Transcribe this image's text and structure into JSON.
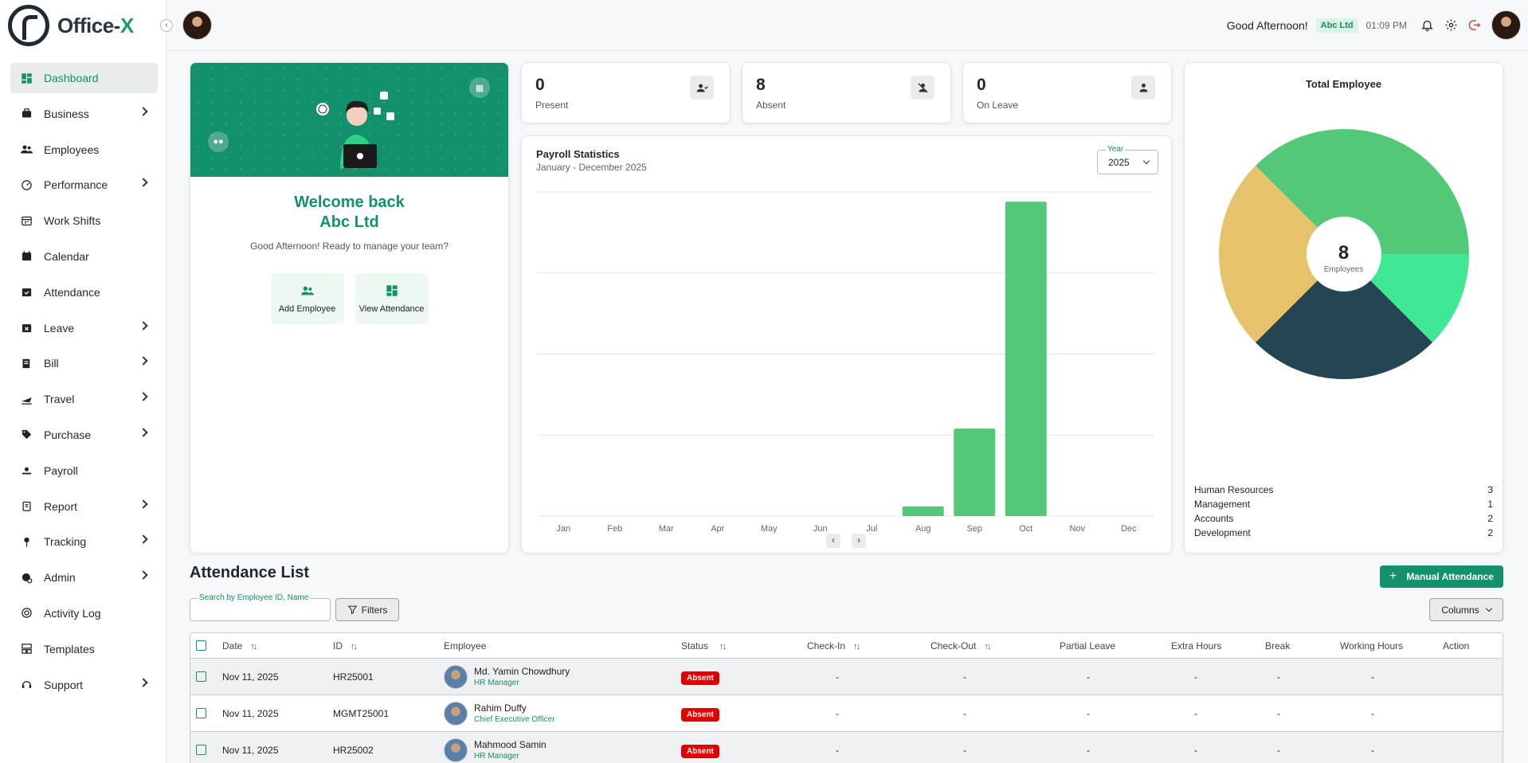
{
  "app": {
    "name_main": "Office-",
    "name_accent": "X"
  },
  "sidebar": {
    "items": [
      {
        "label": "Dashboard",
        "icon": "dashboard-icon",
        "active": true,
        "expandable": false
      },
      {
        "label": "Business",
        "icon": "business-icon",
        "expandable": true
      },
      {
        "label": "Employees",
        "icon": "employees-icon",
        "expandable": false
      },
      {
        "label": "Performance",
        "icon": "performance-icon",
        "expandable": true
      },
      {
        "label": "Work Shifts",
        "icon": "work-shifts-icon",
        "expandable": false
      },
      {
        "label": "Calendar",
        "icon": "calendar-icon",
        "expandable": false
      },
      {
        "label": "Attendance",
        "icon": "attendance-icon",
        "expandable": false
      },
      {
        "label": "Leave",
        "icon": "leave-icon",
        "expandable": true
      },
      {
        "label": "Bill",
        "icon": "bill-icon",
        "expandable": true
      },
      {
        "label": "Travel",
        "icon": "travel-icon",
        "expandable": true
      },
      {
        "label": "Purchase",
        "icon": "purchase-icon",
        "expandable": true
      },
      {
        "label": "Payroll",
        "icon": "payroll-icon",
        "expandable": false
      },
      {
        "label": "Report",
        "icon": "report-icon",
        "expandable": true
      },
      {
        "label": "Tracking",
        "icon": "tracking-icon",
        "expandable": true
      },
      {
        "label": "Admin",
        "icon": "admin-icon",
        "expandable": true
      },
      {
        "label": "Activity Log",
        "icon": "activity-log-icon",
        "expandable": false
      },
      {
        "label": "Templates",
        "icon": "templates-icon",
        "expandable": false
      },
      {
        "label": "Support",
        "icon": "support-icon",
        "expandable": true
      }
    ]
  },
  "header": {
    "greeting": "Good Afternoon!",
    "company": "Abc Ltd",
    "time": "01:09 PM"
  },
  "welcome": {
    "line1": "Welcome back",
    "line2": "Abc Ltd",
    "subtitle": "Good Afternoon! Ready to manage your team?",
    "actions": [
      {
        "label": "Add Employee",
        "icon": "add-employee-icon"
      },
      {
        "label": "View Attendance",
        "icon": "view-attendance-icon"
      }
    ]
  },
  "stats": [
    {
      "value": "0",
      "label": "Present",
      "icon": "present-icon"
    },
    {
      "value": "8",
      "label": "Absent",
      "icon": "absent-icon"
    },
    {
      "value": "0",
      "label": "On Leave",
      "icon": "on-leave-icon"
    }
  ],
  "payroll": {
    "title": "Payroll Statistics",
    "subtitle": "January - December 2025",
    "year_label": "Year",
    "year_value": "2025"
  },
  "total_employee": {
    "title": "Total Employee",
    "count": "8",
    "count_label": "Employees",
    "departments": [
      {
        "name": "Human Resources",
        "count": "3"
      },
      {
        "name": "Management",
        "count": "1"
      },
      {
        "name": "Accounts",
        "count": "2"
      },
      {
        "name": "Development",
        "count": "2"
      }
    ]
  },
  "chart_data": [
    {
      "type": "bar",
      "categories": [
        "Jan",
        "Feb",
        "Mar",
        "Apr",
        "May",
        "Jun",
        "Jul",
        "Aug",
        "Sep",
        "Oct",
        "Nov",
        "Dec"
      ],
      "values": [
        0,
        0,
        0,
        0,
        0,
        0,
        0,
        3,
        27,
        97,
        0,
        0
      ],
      "ylim": [
        0,
        100
      ],
      "grid": true,
      "color": "#52c878"
    },
    {
      "type": "pie",
      "labels": [
        "Human Resources",
        "Management",
        "Accounts",
        "Development"
      ],
      "values": [
        3,
        1,
        2,
        2
      ],
      "colors": [
        "#52c878",
        "#3ee894",
        "#264553",
        "#e6c36a"
      ]
    }
  ],
  "attendance": {
    "title": "Attendance List",
    "manual_button": "Manual Attendance",
    "search_label": "Search by Employee ID, Name",
    "search_value": "",
    "filters_label": "Filters",
    "columns_label": "Columns",
    "headers": {
      "date": "Date",
      "id": "ID",
      "employee": "Employee",
      "status": "Status",
      "check_in": "Check-In",
      "check_out": "Check-Out",
      "partial_leave": "Partial Leave",
      "extra_hours": "Extra Hours",
      "break": "Break",
      "working_hours": "Working Hours",
      "action": "Action"
    },
    "rows": [
      {
        "date": "Nov 11, 2025",
        "id": "HR25001",
        "name": "Md. Yamin Chowdhury",
        "role": "HR Manager",
        "status": "Absent",
        "check_in": "-",
        "check_out": "-",
        "partial_leave": "-",
        "extra_hours": "-",
        "break": "-",
        "working_hours": "-"
      },
      {
        "date": "Nov 11, 2025",
        "id": "MGMT25001",
        "name": "Rahim Duffy",
        "role": "Chief Executive Officer",
        "status": "Absent",
        "check_in": "-",
        "check_out": "-",
        "partial_leave": "-",
        "extra_hours": "-",
        "break": "-",
        "working_hours": "-"
      },
      {
        "date": "Nov 11, 2025",
        "id": "HR25002",
        "name": "Mahmood Samin",
        "role": "HR Manager",
        "status": "Absent",
        "check_in": "-",
        "check_out": "-",
        "partial_leave": "-",
        "extra_hours": "-",
        "break": "-",
        "working_hours": "-"
      }
    ]
  }
}
